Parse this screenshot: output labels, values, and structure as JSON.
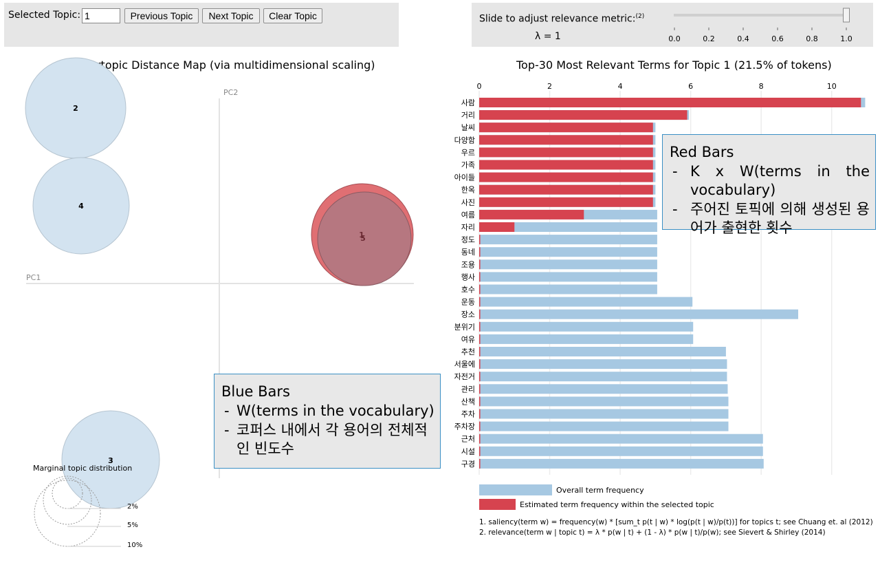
{
  "controls": {
    "selected_topic_label": "Selected Topic:",
    "selected_topic_value": "1",
    "previous_label": "Previous Topic",
    "next_label": "Next Topic",
    "clear_label": "Clear Topic"
  },
  "lambda_control": {
    "label": "Slide to adjust relevance metric:",
    "label_sup": "(2)",
    "value_text": "λ = 1",
    "value": 1.0,
    "ticks": [
      "0.0",
      "0.2",
      "0.4",
      "0.6",
      "0.8",
      "1.0"
    ]
  },
  "colors": {
    "blue": "#a6c8e2",
    "red": "#d6434f",
    "circle": "#d3e3f0",
    "selected": "#c25e6b"
  },
  "topic_map": {
    "title": "Intertopic Distance Map (via multidimensional scaling)",
    "pc1_label": "PC1",
    "pc2_label": "PC2",
    "topics": [
      {
        "id": "2",
        "label": "2"
      },
      {
        "id": "4",
        "label": "4"
      },
      {
        "id": "3",
        "label": "3"
      },
      {
        "id": "5",
        "label": "5"
      },
      {
        "id": "1",
        "label": "1",
        "selected": true
      }
    ],
    "marginal": {
      "title": "Marginal topic distribution",
      "levels": [
        "2%",
        "5%",
        "10%"
      ]
    }
  },
  "chart_data": {
    "type": "bar",
    "title": "Top-30 Most Relevant Terms for Topic 1 (21.5% of tokens)",
    "xlim": [
      0,
      11
    ],
    "xticks": [
      "0",
      "2",
      "4",
      "6",
      "8",
      "10"
    ],
    "categories": [
      "사람",
      "거리",
      "날씨",
      "다양함",
      "우르",
      "가족",
      "아이들",
      "한옥",
      "사진",
      "여름",
      "자리",
      "정도",
      "동네",
      "조용",
      "행사",
      "호수",
      "운동",
      "장소",
      "분위기",
      "여유",
      "추천",
      "서울에",
      "자전거",
      "관리",
      "산책",
      "주차",
      "주차장",
      "근처",
      "시설",
      "구경"
    ],
    "series": [
      {
        "name": "Overall term frequency",
        "color": "#a6c8e2",
        "values": [
          10.95,
          5.95,
          5.0,
          5.0,
          5.0,
          5.0,
          5.0,
          5.0,
          5.0,
          5.05,
          5.05,
          5.05,
          5.05,
          5.05,
          5.05,
          5.05,
          6.05,
          9.05,
          6.07,
          6.07,
          7.0,
          7.03,
          7.03,
          7.05,
          7.07,
          7.07,
          7.07,
          8.05,
          8.05,
          8.07
        ]
      },
      {
        "name": "Estimated term frequency within the selected topic",
        "color": "#d6434f",
        "values": [
          10.83,
          5.9,
          4.93,
          4.93,
          4.93,
          4.93,
          4.93,
          4.93,
          4.93,
          2.97,
          1.0,
          0.03,
          0.03,
          0.03,
          0.03,
          0.03,
          0.03,
          0.03,
          0.03,
          0.03,
          0.03,
          0.03,
          0.03,
          0.03,
          0.03,
          0.03,
          0.03,
          0.03,
          0.03,
          0.03
        ]
      }
    ]
  },
  "footnotes": [
    "1. saliency(term w) = frequency(w) * [sum_t p(t | w) * log(p(t | w)/p(t))] for topics t; see Chuang et. al (2012)",
    "2. relevance(term w | topic t) = λ * p(w | t) + (1 - λ) * p(w | t)/p(w); see Sievert & Shirley (2014)"
  ],
  "annotations": {
    "blue": {
      "title": "Blue Bars",
      "items": [
        "W(terms in the vocabulary)",
        "코퍼스 내에서 각 용어의 전체적인 빈도수"
      ]
    },
    "red": {
      "title": "Red Bars",
      "items": [
        "K x W(terms in the vocabulary)",
        "주어진 토픽에 의해 생성된 용어가 출현한 횟수"
      ]
    }
  }
}
